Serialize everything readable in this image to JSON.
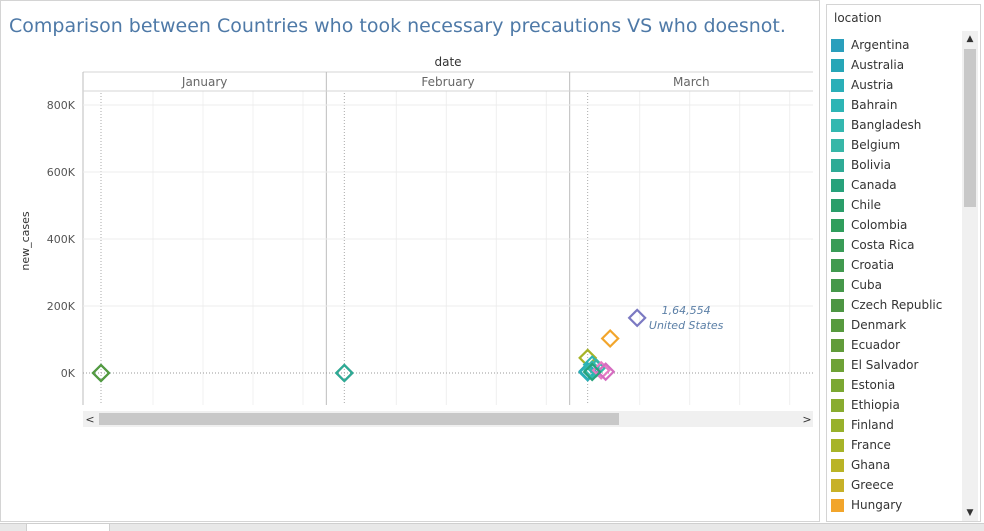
{
  "title": "Comparison between Countries who took necessary precautions VS who doesnot.",
  "header": {
    "date_label": "date"
  },
  "legend": {
    "title": "location",
    "items": [
      {
        "label": "Argentina",
        "color": "#2a9fbc"
      },
      {
        "label": "Australia",
        "color": "#26a6b7"
      },
      {
        "label": "Austria",
        "color": "#2aafb8"
      },
      {
        "label": "Bahrain",
        "color": "#2db5b5"
      },
      {
        "label": "Bangladesh",
        "color": "#33b8b0"
      },
      {
        "label": "Belgium",
        "color": "#37b7a8"
      },
      {
        "label": "Bolivia",
        "color": "#2eab96"
      },
      {
        "label": "Canada",
        "color": "#27a27b"
      },
      {
        "label": "Chile",
        "color": "#2a9e6a"
      },
      {
        "label": "Colombia",
        "color": "#2f9e5c"
      },
      {
        "label": "Costa Rica",
        "color": "#399c57"
      },
      {
        "label": "Croatia",
        "color": "#419a4f"
      },
      {
        "label": "Cuba",
        "color": "#45984a"
      },
      {
        "label": "Czech Republic",
        "color": "#4d9643"
      },
      {
        "label": "Denmark",
        "color": "#579a3e"
      },
      {
        "label": "Ecuador",
        "color": "#619c3a"
      },
      {
        "label": "El Salvador",
        "color": "#6ea236"
      },
      {
        "label": "Estonia",
        "color": "#7ba832"
      },
      {
        "label": "Ethiopia",
        "color": "#89ac2f"
      },
      {
        "label": "Finland",
        "color": "#98b12b"
      },
      {
        "label": "France",
        "color": "#a7b428"
      },
      {
        "label": "Ghana",
        "color": "#bab426"
      },
      {
        "label": "Greece",
        "color": "#c7b128"
      },
      {
        "label": "Hungary",
        "color": "#f2a52b"
      }
    ]
  },
  "chart_data": {
    "type": "scatter",
    "ylabel": "new_cases",
    "ylim": [
      -100000,
      840000
    ],
    "yticks": [
      0,
      200000,
      400000,
      600000,
      800000
    ],
    "ytick_labels": [
      "0K",
      "200K",
      "400K",
      "600K",
      "800K"
    ],
    "panels": [
      "January",
      "February",
      "March"
    ],
    "grid": true,
    "annotation": {
      "value_text": "1,64,554",
      "location": "United States"
    },
    "points": [
      {
        "panel": "January",
        "day": 1,
        "y": 0,
        "color": "#2aafb8"
      },
      {
        "panel": "January",
        "day": 1,
        "y": 0,
        "color": "#579a3e"
      },
      {
        "panel": "February",
        "day": 1,
        "y": 0,
        "color": "#e87bc4"
      },
      {
        "panel": "February",
        "day": 1,
        "y": 0,
        "color": "#2a9e6a"
      },
      {
        "panel": "February",
        "day": 1,
        "y": 0,
        "color": "#2eab96"
      },
      {
        "panel": "March",
        "day": 1,
        "y": 45000,
        "color": "#a7b428"
      },
      {
        "panel": "March",
        "day": 1,
        "y": 5000,
        "color": "#26a6b7"
      },
      {
        "panel": "March",
        "day": 1,
        "y": 2000,
        "color": "#2aafb8"
      },
      {
        "panel": "March",
        "day": 2,
        "y": 25000,
        "color": "#2db5b5"
      },
      {
        "panel": "March",
        "day": 2,
        "y": 10000,
        "color": "#33b8b0"
      },
      {
        "panel": "March",
        "day": 3,
        "y": 15000,
        "color": "#37b7a8"
      },
      {
        "panel": "March",
        "day": 4,
        "y": 8000,
        "color": "#e87bc4"
      },
      {
        "panel": "March",
        "day": 5,
        "y": 4000,
        "color": "#d56cc0"
      },
      {
        "panel": "March",
        "day": 2,
        "y": 3000,
        "color": "#27a27b"
      },
      {
        "panel": "March",
        "day": 6,
        "y": 103000,
        "color": "#f2a52b"
      },
      {
        "panel": "March",
        "day": 12,
        "y": 164554,
        "color": "#7b79c2"
      }
    ]
  }
}
